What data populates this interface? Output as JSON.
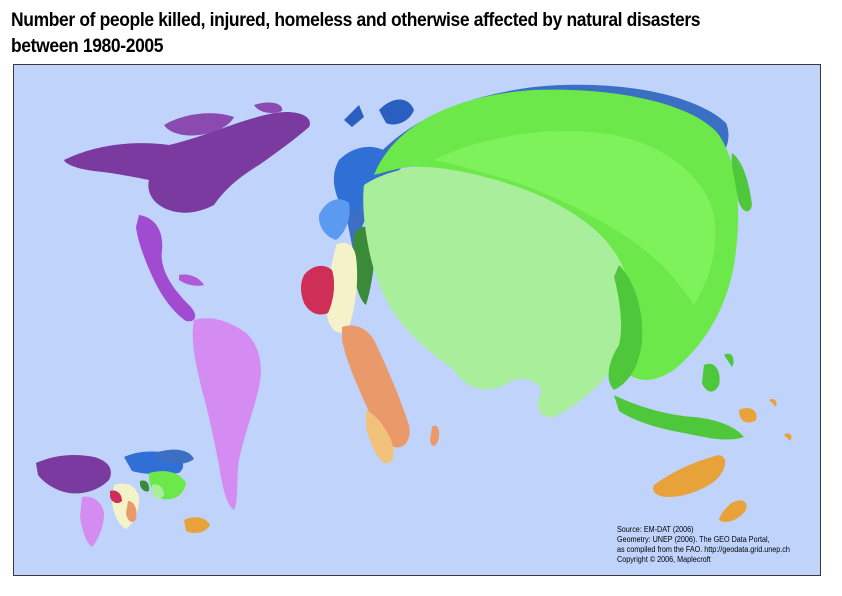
{
  "title": {
    "line1": "Number of people killed, injured, homeless and otherwise affected by natural disasters",
    "line2": "between 1980-2005"
  },
  "source": {
    "line1": "Source: EM-DAT (2006)",
    "line2": "Geometry: UNEP (2006). The GEO Data Portal,",
    "line3": "as compiled from the FAO. http://geodata.grid.unep.ch",
    "line4": "Copyright © 2006, Maplecroft"
  },
  "colors": {
    "ocean": "#bfd3fb",
    "north_america": "#7a3aa0",
    "central_america": "#a14bd0",
    "south_america": "#d58cf2",
    "europe": "#2f6fd6",
    "europe_light": "#5b9af0",
    "west_africa": "#cf2e56",
    "north_africa": "#f4f2c8",
    "east_africa": "#ea9a6a",
    "southern_africa": "#f2c27a",
    "middle_east": "#3a8a3a",
    "south_asia": "#a9ee9a",
    "east_asia": "#6ce84a",
    "southeast_asia": "#4ec83a",
    "oceania": "#e8a23a",
    "russia": "#3a7ac8"
  }
}
